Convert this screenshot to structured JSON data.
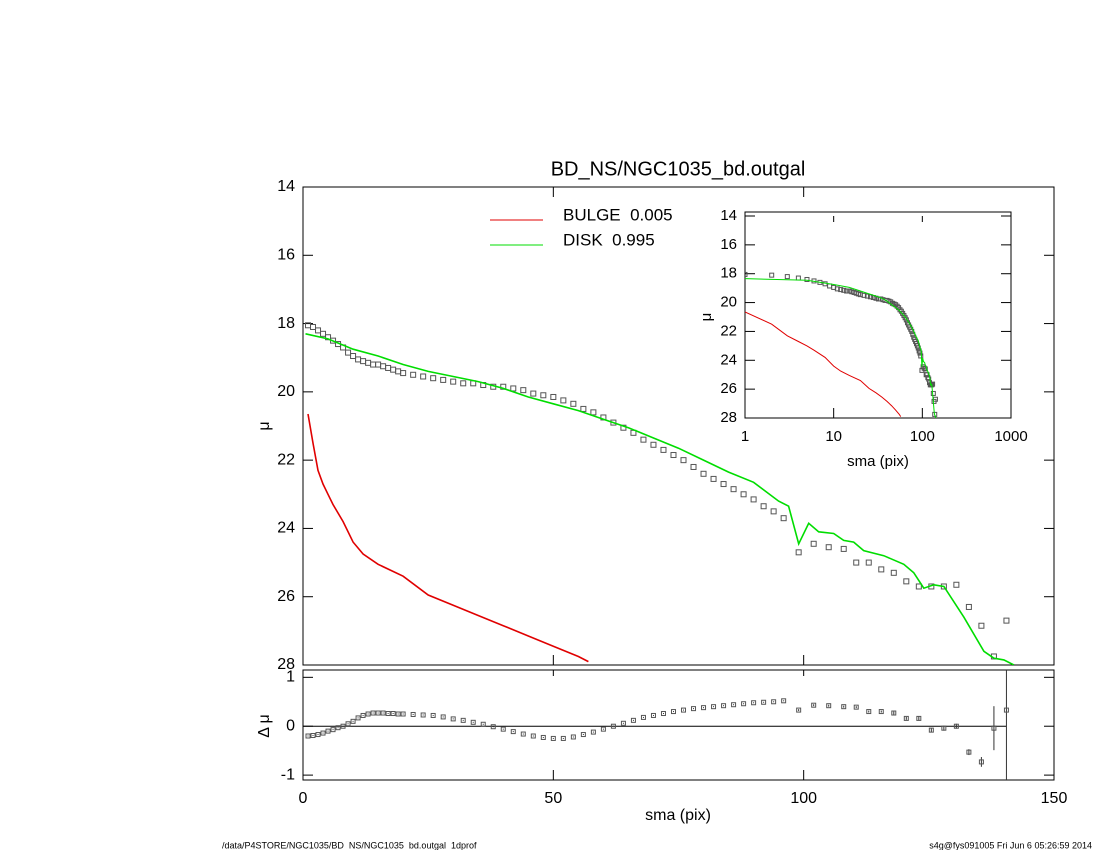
{
  "chart_data": [
    {
      "type": "scatter",
      "title": "BD_NS/NGC1035_bd.outgal",
      "ylabel": "μ",
      "xlim": [
        0,
        150
      ],
      "ylim": [
        14,
        28
      ],
      "y_reversed": true,
      "yticks": [
        14,
        16,
        18,
        20,
        22,
        24,
        26,
        28
      ],
      "legend": "upper center",
      "series": [
        {
          "kind": "scatter",
          "color": "#555555",
          "x": [
            1,
            2,
            3,
            4,
            5,
            6,
            7,
            8,
            9,
            10,
            11,
            12,
            13,
            14,
            15,
            16,
            17,
            18,
            19,
            20,
            22,
            24,
            26,
            28,
            30,
            32,
            34,
            36,
            38,
            40,
            42,
            44,
            46,
            48,
            50,
            52,
            54,
            56,
            58,
            60,
            62,
            64,
            66,
            68,
            70,
            72,
            74,
            76,
            78,
            80,
            82,
            84,
            86,
            88,
            90,
            92,
            94,
            96,
            99,
            102,
            105,
            108,
            110.5,
            113,
            115.5,
            118,
            120.5,
            123,
            125.5,
            128,
            130.5,
            133,
            135.5,
            138,
            140.5
          ],
          "values": [
            18.05,
            18.1,
            18.2,
            18.3,
            18.4,
            18.5,
            18.6,
            18.7,
            18.85,
            18.95,
            19.05,
            19.1,
            19.15,
            19.2,
            19.2,
            19.25,
            19.3,
            19.35,
            19.4,
            19.45,
            19.5,
            19.55,
            19.6,
            19.65,
            19.7,
            19.75,
            19.75,
            19.8,
            19.85,
            19.85,
            19.9,
            19.95,
            20.05,
            20.1,
            20.15,
            20.25,
            20.35,
            20.5,
            20.6,
            20.75,
            20.9,
            21.05,
            21.2,
            21.4,
            21.55,
            21.7,
            21.85,
            22.0,
            22.2,
            22.4,
            22.55,
            22.7,
            22.85,
            23.0,
            23.15,
            23.35,
            23.5,
            23.7,
            24.7,
            24.45,
            24.55,
            24.6,
            25.0,
            25.0,
            25.2,
            25.3,
            25.55,
            25.7,
            25.7,
            25.7,
            25.65,
            26.3,
            26.85,
            27.75,
            26.7
          ]
        },
        {
          "kind": "line",
          "name": "BULGE  0.005",
          "color": "#e00000",
          "x": [
            1,
            2,
            3,
            4,
            5,
            6,
            8,
            10,
            12,
            15,
            20,
            25,
            30,
            35,
            40,
            45,
            50,
            55,
            57
          ],
          "values": [
            20.65,
            21.5,
            22.3,
            22.7,
            23.0,
            23.3,
            23.8,
            24.4,
            24.75,
            25.05,
            25.4,
            25.95,
            26.25,
            26.55,
            26.85,
            27.15,
            27.45,
            27.75,
            27.9
          ]
        },
        {
          "kind": "line",
          "name": "DISK  0.995",
          "color": "#00dd00",
          "x": [
            0.5,
            5,
            10,
            15,
            20,
            25,
            30,
            35,
            40,
            45,
            50,
            55,
            60,
            65,
            70,
            75,
            80,
            85,
            90,
            95,
            97,
            99,
            101,
            103,
            106,
            108,
            110,
            112,
            116,
            120,
            122,
            124,
            126,
            128,
            132,
            136,
            138,
            140,
            142
          ],
          "values": [
            18.3,
            18.45,
            18.75,
            18.95,
            19.2,
            19.4,
            19.55,
            19.7,
            19.9,
            20.15,
            20.35,
            20.55,
            20.8,
            21.05,
            21.35,
            21.65,
            22.0,
            22.35,
            22.65,
            23.2,
            23.35,
            24.45,
            23.85,
            24.1,
            24.15,
            24.35,
            24.4,
            24.65,
            24.8,
            25.05,
            25.3,
            25.75,
            25.65,
            25.7,
            26.6,
            27.6,
            27.8,
            27.85,
            28.0
          ]
        }
      ]
    },
    {
      "type": "line",
      "log_x": true,
      "y_reversed": true,
      "xlabel": "sma (pix)",
      "ylabel": "μ",
      "xlim": [
        1,
        1000
      ],
      "xticks": [
        1,
        10,
        100,
        1000
      ],
      "ylim": [
        14,
        28
      ],
      "yticks": [
        14,
        16,
        18,
        20,
        22,
        24,
        26,
        28
      ]
    },
    {
      "type": "scatter",
      "xlabel": "sma (pix)",
      "ylabel": "Δ μ",
      "xlim": [
        0,
        150
      ],
      "xticks": [
        0,
        50,
        100,
        150
      ],
      "ylim": [
        -1.1,
        1.15
      ],
      "yticks": [
        1,
        0,
        -1
      ],
      "hline": 0,
      "values": [
        -0.2,
        -0.19,
        -0.17,
        -0.14,
        -0.1,
        -0.07,
        -0.03,
        0.0,
        0.05,
        0.1,
        0.17,
        0.22,
        0.25,
        0.27,
        0.27,
        0.27,
        0.26,
        0.26,
        0.25,
        0.25,
        0.24,
        0.23,
        0.22,
        0.19,
        0.15,
        0.12,
        0.08,
        0.04,
        -0.01,
        -0.06,
        -0.11,
        -0.16,
        -0.2,
        -0.23,
        -0.25,
        -0.25,
        -0.22,
        -0.17,
        -0.12,
        -0.06,
        0.0,
        0.06,
        0.12,
        0.18,
        0.22,
        0.26,
        0.3,
        0.33,
        0.36,
        0.38,
        0.4,
        0.42,
        0.44,
        0.46,
        0.48,
        0.49,
        0.5,
        0.52,
        0.33,
        0.43,
        0.42,
        0.4,
        0.39,
        0.3,
        0.3,
        0.27,
        0.16,
        0.16,
        -0.08,
        -0.04,
        0.0,
        -0.53,
        -0.73,
        -0.04,
        0.33
      ],
      "errors": [
        0.01,
        0.01,
        0.01,
        0.01,
        0.01,
        0.01,
        0.01,
        0.01,
        0.01,
        0.01,
        0.01,
        0.01,
        0.01,
        0.01,
        0.01,
        0.01,
        0.01,
        0.01,
        0.01,
        0.01,
        0.01,
        0.01,
        0.01,
        0.01,
        0.01,
        0.01,
        0.01,
        0.01,
        0.01,
        0.01,
        0.01,
        0.01,
        0.01,
        0.01,
        0.01,
        0.01,
        0.01,
        0.01,
        0.01,
        0.01,
        0.01,
        0.01,
        0.01,
        0.01,
        0.01,
        0.01,
        0.01,
        0.01,
        0.01,
        0.01,
        0.01,
        0.01,
        0.01,
        0.01,
        0.01,
        0.01,
        0.01,
        0.01,
        0.02,
        0.02,
        0.02,
        0.02,
        0.02,
        0.02,
        0.02,
        0.03,
        0.03,
        0.04,
        0.04,
        0.05,
        0.05,
        0.06,
        0.1,
        0.45,
        2.0
      ]
    }
  ],
  "footer": {
    "left": "/data/P4STORE/NGC1035/BD_NS/NGC1035_bd.outgal_1dprof",
    "right": "s4g@fys091005  Fri Jun  6 05:26:59 2014"
  }
}
